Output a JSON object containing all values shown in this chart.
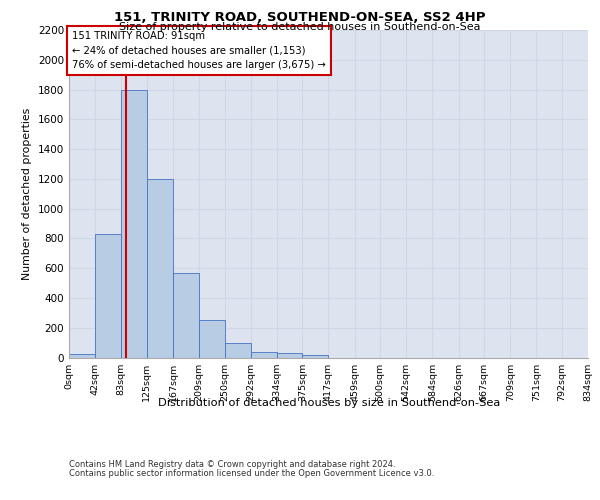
{
  "title_line1": "151, TRINITY ROAD, SOUTHEND-ON-SEA, SS2 4HP",
  "title_line2": "Size of property relative to detached houses in Southend-on-Sea",
  "xlabel": "Distribution of detached houses by size in Southend-on-Sea",
  "ylabel": "Number of detached properties",
  "footer_line1": "Contains HM Land Registry data © Crown copyright and database right 2024.",
  "footer_line2": "Contains public sector information licensed under the Open Government Licence v3.0.",
  "annotation_line1": "151 TRINITY ROAD: 91sqm",
  "annotation_line2": "← 24% of detached houses are smaller (1,153)",
  "annotation_line3": "76% of semi-detached houses are larger (3,675) →",
  "property_size": 91,
  "bar_color": "#b8cce4",
  "bar_edge_color": "#4472c4",
  "vline_color": "#cc0000",
  "annotation_box_color": "#cc0000",
  "grid_color": "#d0d8e8",
  "background_color": "#dde4f0",
  "ylim": [
    0,
    2200
  ],
  "bin_edges": [
    0,
    42,
    83,
    125,
    167,
    209,
    250,
    292,
    334,
    375,
    417,
    459,
    500,
    542,
    584,
    626,
    667,
    709,
    751,
    792,
    834
  ],
  "bin_labels": [
    "0sqm",
    "42sqm",
    "83sqm",
    "125sqm",
    "167sqm",
    "209sqm",
    "250sqm",
    "292sqm",
    "334sqm",
    "375sqm",
    "417sqm",
    "459sqm",
    "500sqm",
    "542sqm",
    "584sqm",
    "626sqm",
    "667sqm",
    "709sqm",
    "751sqm",
    "792sqm",
    "834sqm"
  ],
  "bar_heights": [
    25,
    830,
    1800,
    1200,
    570,
    250,
    100,
    40,
    30,
    20,
    0,
    0,
    0,
    0,
    0,
    0,
    0,
    0,
    0,
    0
  ],
  "yticks": [
    0,
    200,
    400,
    600,
    800,
    1000,
    1200,
    1400,
    1600,
    1800,
    2000,
    2200
  ]
}
